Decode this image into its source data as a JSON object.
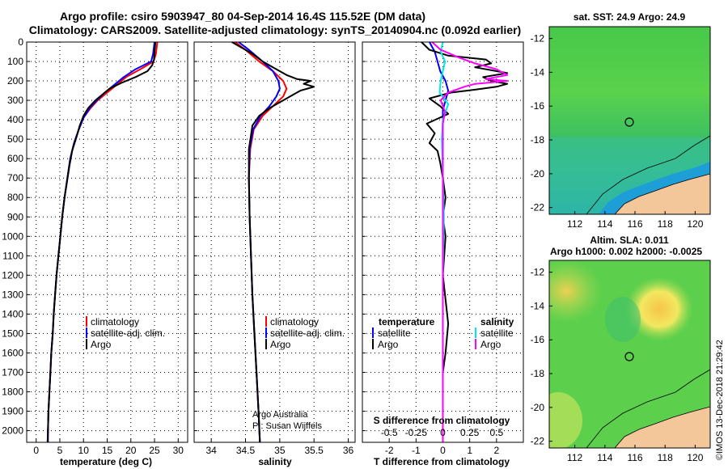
{
  "header": {
    "title_line1": "Argo profile: csiro 5903947_80 04-Sep-2014 16.4S 115.52E (DM data)",
    "title_line2": "Climatology: CARS2009. Satellite-adjusted climatology: synTS_20140904.nc (0.092d earlier)"
  },
  "depth_axis": {
    "ticks": [
      0,
      100,
      200,
      300,
      400,
      500,
      600,
      700,
      800,
      900,
      1000,
      1100,
      1200,
      1300,
      1400,
      1500,
      1600,
      1700,
      1800,
      1900,
      2000
    ],
    "range": [
      0,
      2060
    ]
  },
  "colors": {
    "climatology": "#ff0000",
    "satellite": "#0000ff",
    "argo": "#000000",
    "salinity_satellite": "#00e5ee",
    "salinity_argo": "#ff00ff"
  },
  "chart_data": [
    {
      "type": "line",
      "id": "temperature",
      "xlabel": "temperature (deg C)",
      "xlim": [
        -2,
        32
      ],
      "xticks": [
        0,
        5,
        10,
        15,
        20,
        25,
        30
      ],
      "ylabel": "depth",
      "legend": [
        "climatology",
        "satellite-adj. clim.",
        "Argo"
      ],
      "series": [
        {
          "name": "climatology",
          "points": [
            [
              25.6,
              0
            ],
            [
              25.3,
              60
            ],
            [
              24.8,
              100
            ],
            [
              22,
              140
            ],
            [
              19,
              180
            ],
            [
              17,
              220
            ],
            [
              15,
              260
            ],
            [
              13,
              300
            ],
            [
              11.5,
              340
            ],
            [
              10,
              390
            ],
            [
              9,
              450
            ],
            [
              8,
              520
            ],
            [
              7.2,
              600
            ],
            [
              6.6,
              700
            ],
            [
              6,
              800
            ],
            [
              5.5,
              900
            ],
            [
              5.1,
              1000
            ],
            [
              4.7,
              1100
            ],
            [
              4.3,
              1200
            ],
            [
              4,
              1300
            ],
            [
              3.7,
              1400
            ],
            [
              3.5,
              1500
            ],
            [
              3.2,
              1600
            ],
            [
              3,
              1700
            ],
            [
              2.8,
              1800
            ],
            [
              2.6,
              1900
            ],
            [
              2.5,
              2000
            ],
            [
              2.4,
              2060
            ]
          ]
        },
        {
          "name": "satellite-adj. clim.",
          "points": [
            [
              25,
              0
            ],
            [
              24.7,
              60
            ],
            [
              24.3,
              100
            ],
            [
              21,
              140
            ],
            [
              18.5,
              180
            ],
            [
              16.5,
              220
            ],
            [
              14.5,
              260
            ],
            [
              12.8,
              300
            ],
            [
              11.3,
              340
            ],
            [
              10,
              390
            ],
            [
              9,
              450
            ],
            [
              8,
              520
            ],
            [
              7.2,
              600
            ],
            [
              6.6,
              700
            ],
            [
              6,
              800
            ],
            [
              5.5,
              900
            ],
            [
              5.1,
              1000
            ],
            [
              4.7,
              1100
            ],
            [
              4.3,
              1200
            ],
            [
              4,
              1300
            ],
            [
              3.7,
              1400
            ],
            [
              3.5,
              1500
            ],
            [
              3.2,
              1600
            ],
            [
              3,
              1700
            ],
            [
              2.8,
              1800
            ],
            [
              2.6,
              1900
            ],
            [
              2.5,
              2000
            ],
            [
              2.4,
              2060
            ]
          ]
        },
        {
          "name": "Argo",
          "points": [
            [
              25.2,
              0
            ],
            [
              25,
              50
            ],
            [
              24.9,
              90
            ],
            [
              24.5,
              120
            ],
            [
              23.5,
              150
            ],
            [
              21,
              180
            ],
            [
              18,
              210
            ],
            [
              15.5,
              240
            ],
            [
              14,
              270
            ],
            [
              12.5,
              300
            ],
            [
              11,
              340
            ],
            [
              10,
              380
            ],
            [
              9.2,
              430
            ],
            [
              8.5,
              490
            ],
            [
              7.6,
              560
            ],
            [
              7,
              640
            ],
            [
              6.5,
              720
            ],
            [
              6,
              800
            ],
            [
              5.5,
              900
            ],
            [
              5.1,
              1000
            ],
            [
              4.7,
              1100
            ],
            [
              4.3,
              1200
            ],
            [
              4,
              1300
            ],
            [
              3.7,
              1400
            ],
            [
              3.5,
              1500
            ],
            [
              3.2,
              1600
            ],
            [
              3,
              1700
            ],
            [
              2.8,
              1800
            ],
            [
              2.6,
              1900
            ],
            [
              2.5,
              2000
            ],
            [
              2.5,
              2060
            ]
          ]
        }
      ]
    },
    {
      "type": "line",
      "id": "salinity",
      "xlabel": "salinity",
      "xlim": [
        33.75,
        36.1
      ],
      "xticks": [
        34,
        34.5,
        35,
        35.5,
        36
      ],
      "ylabel": "depth",
      "legend": [
        "climatology",
        "satellite-adj. clim.",
        "Argo"
      ],
      "annotation": [
        "Argo Australia",
        "PI: Susan Wijffels"
      ],
      "series": [
        {
          "name": "climatology",
          "points": [
            [
              34.35,
              0
            ],
            [
              34.5,
              40
            ],
            [
              34.7,
              100
            ],
            [
              34.9,
              150
            ],
            [
              35.05,
              200
            ],
            [
              35.1,
              240
            ],
            [
              35.05,
              280
            ],
            [
              34.9,
              330
            ],
            [
              34.75,
              380
            ],
            [
              34.62,
              450
            ],
            [
              34.57,
              550
            ],
            [
              34.55,
              700
            ],
            [
              34.56,
              900
            ],
            [
              34.58,
              1100
            ],
            [
              34.6,
              1300
            ],
            [
              34.63,
              1500
            ],
            [
              34.66,
              1700
            ],
            [
              34.69,
              1900
            ],
            [
              34.71,
              2060
            ]
          ]
        },
        {
          "name": "satellite-adj. clim.",
          "points": [
            [
              34.4,
              0
            ],
            [
              34.55,
              40
            ],
            [
              34.75,
              100
            ],
            [
              34.9,
              150
            ],
            [
              34.98,
              200
            ],
            [
              35.0,
              240
            ],
            [
              34.95,
              280
            ],
            [
              34.85,
              330
            ],
            [
              34.72,
              380
            ],
            [
              34.61,
              450
            ],
            [
              34.56,
              550
            ],
            [
              34.55,
              700
            ],
            [
              34.56,
              900
            ],
            [
              34.58,
              1100
            ],
            [
              34.6,
              1300
            ],
            [
              34.63,
              1500
            ],
            [
              34.66,
              1700
            ],
            [
              34.69,
              1900
            ],
            [
              34.71,
              2060
            ]
          ]
        },
        {
          "name": "Argo",
          "points": [
            [
              34.3,
              0
            ],
            [
              34.45,
              30
            ],
            [
              34.6,
              60
            ],
            [
              34.75,
              100
            ],
            [
              34.95,
              140
            ],
            [
              35.1,
              170
            ],
            [
              35.25,
              190
            ],
            [
              35.45,
              200
            ],
            [
              35.35,
              215
            ],
            [
              35.5,
              230
            ],
            [
              35.3,
              250
            ],
            [
              35.2,
              270
            ],
            [
              35.05,
              300
            ],
            [
              34.85,
              340
            ],
            [
              34.7,
              380
            ],
            [
              34.6,
              430
            ],
            [
              34.58,
              480
            ],
            [
              34.55,
              550
            ],
            [
              34.55,
              700
            ],
            [
              34.56,
              900
            ],
            [
              34.58,
              1100
            ],
            [
              34.6,
              1300
            ],
            [
              34.63,
              1500
            ],
            [
              34.66,
              1700
            ],
            [
              34.69,
              1900
            ],
            [
              34.71,
              2060
            ]
          ]
        }
      ]
    },
    {
      "type": "line",
      "id": "differences",
      "xlabel": "T difference from climatology",
      "xlim": [
        -3,
        3
      ],
      "xticks": [
        -2,
        -1,
        0,
        1,
        2
      ],
      "x2label": "S difference from climatology",
      "x2lim": [
        -0.75,
        0.75
      ],
      "x2ticks": [
        -0.5,
        -0.25,
        0,
        0.25,
        0.5
      ],
      "x2ticklabels": [
        "-0.5",
        "-0.25",
        "0",
        "0.25",
        "0.5"
      ],
      "ylabel": "depth",
      "legend_temperature": {
        "title": "temperature",
        "items": [
          "satellite",
          "Argo"
        ]
      },
      "legend_salinity": {
        "title": "salinity",
        "items": [
          "satellite",
          "Argo"
        ]
      },
      "series": [
        {
          "name": "T satellite",
          "axis": "T",
          "points": [
            [
              -0.5,
              0
            ],
            [
              -0.3,
              50
            ],
            [
              -0.2,
              100
            ],
            [
              -0.1,
              150
            ],
            [
              0.1,
              200
            ],
            [
              0.2,
              250
            ],
            [
              0.1,
              300
            ],
            [
              0,
              350
            ],
            [
              0,
              450
            ],
            [
              0,
              600
            ],
            [
              0,
              900
            ],
            [
              0,
              1300
            ],
            [
              0,
              1700
            ],
            [
              0,
              2060
            ]
          ]
        },
        {
          "name": "T Argo",
          "axis": "T",
          "points": [
            [
              -0.8,
              0
            ],
            [
              -0.5,
              40
            ],
            [
              0.2,
              70
            ],
            [
              1.6,
              90
            ],
            [
              1.8,
              110
            ],
            [
              1.2,
              130
            ],
            [
              2.4,
              160
            ],
            [
              1.5,
              180
            ],
            [
              1.8,
              200
            ],
            [
              2.4,
              215
            ],
            [
              2,
              230
            ],
            [
              1.2,
              245
            ],
            [
              0.3,
              260
            ],
            [
              -0.5,
              290
            ],
            [
              -0.1,
              330
            ],
            [
              0.2,
              370
            ],
            [
              -0.6,
              420
            ],
            [
              -0.3,
              470
            ],
            [
              -0.5,
              520
            ],
            [
              -0.2,
              560
            ],
            [
              -0.1,
              620
            ],
            [
              0,
              700
            ],
            [
              0.1,
              800
            ],
            [
              0,
              900
            ],
            [
              0.1,
              1000
            ],
            [
              0,
              1200
            ],
            [
              0.2,
              1450
            ],
            [
              0.1,
              1600
            ],
            [
              0,
              1700
            ],
            [
              0,
              2060
            ]
          ]
        },
        {
          "name": "S satellite",
          "axis": "S",
          "points": [
            [
              0,
              0
            ],
            [
              -0.02,
              50
            ],
            [
              0.02,
              100
            ],
            [
              0,
              150
            ],
            [
              -0.02,
              200
            ],
            [
              -0.03,
              260
            ],
            [
              0.05,
              320
            ],
            [
              0,
              400
            ],
            [
              -0.01,
              500
            ],
            [
              0,
              700
            ],
            [
              0.01,
              900
            ],
            [
              0,
              1200
            ],
            [
              0,
              1500
            ],
            [
              0,
              2060
            ]
          ]
        },
        {
          "name": "S Argo",
          "axis": "S",
          "points": [
            [
              -0.1,
              0
            ],
            [
              -0.02,
              40
            ],
            [
              0.15,
              80
            ],
            [
              0.3,
              110
            ],
            [
              0.5,
              140
            ],
            [
              0.6,
              170
            ],
            [
              0.4,
              190
            ],
            [
              0.6,
              200
            ],
            [
              0.3,
              215
            ],
            [
              0.2,
              230
            ],
            [
              0.05,
              260
            ],
            [
              -0.02,
              300
            ],
            [
              0.02,
              360
            ],
            [
              0,
              420
            ],
            [
              0,
              600
            ],
            [
              0,
              900
            ],
            [
              0,
              1200
            ],
            [
              0,
              1500
            ],
            [
              0,
              2060
            ]
          ]
        }
      ]
    }
  ],
  "maps": {
    "sst": {
      "title": "sat. SST: 24.9 Argo: 24.9",
      "lat_ticks": [
        "-12",
        "-14",
        "-16",
        "-18",
        "-20",
        "-22"
      ],
      "lon_ticks": [
        "112",
        "114",
        "116",
        "118",
        "120"
      ],
      "float_marker": "Argo float position"
    },
    "sla": {
      "title_line1": "Altim. SLA: 0.011",
      "title_line2": "Argo h1000: 0.002 h2000: -0.0025",
      "lat_ticks": [
        "-12",
        "-14",
        "-16",
        "-18",
        "-20",
        "-22"
      ],
      "lon_ticks": [
        "112",
        "114",
        "116",
        "118",
        "120"
      ]
    }
  },
  "credit": "©IMOS 13-Dec-2018 21:29:42"
}
